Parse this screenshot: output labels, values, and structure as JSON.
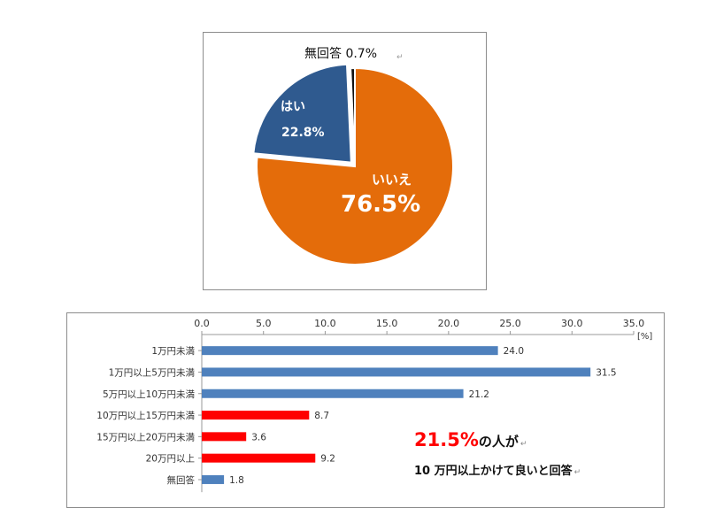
{
  "chart_data": [
    {
      "type": "pie",
      "slices": [
        {
          "label": "いいえ",
          "value": 76.5,
          "value_label": "76.5%",
          "color": "#e46c0a"
        },
        {
          "label": "はい",
          "value": 22.8,
          "value_label": "22.8%",
          "color": "#2f5a8f"
        },
        {
          "label": "無回答",
          "value": 0.7,
          "value_label": "0.7%",
          "color": "#111111"
        }
      ]
    },
    {
      "type": "bar",
      "orientation": "horizontal",
      "categories": [
        "1万円未満",
        "1万円以上5万円未満",
        "5万円以上10万円未満",
        "10万円以上15万円未満",
        "15万円以上20万円未満",
        "20万円以上",
        "無回答"
      ],
      "values": [
        24.0,
        31.5,
        21.2,
        8.7,
        3.6,
        9.2,
        1.8
      ],
      "colors": [
        "#4f81bd",
        "#4f81bd",
        "#4f81bd",
        "#ff0000",
        "#ff0000",
        "#ff0000",
        "#4f81bd"
      ],
      "xlim": [
        0,
        35
      ],
      "xticks": [
        "0.0",
        "5.0",
        "10.0",
        "15.0",
        "20.0",
        "25.0",
        "30.0",
        "35.0"
      ],
      "unit_label": "[%]",
      "tick_position": "top"
    }
  ],
  "callout": {
    "highlight": "21.5%",
    "line1_suffix": "の人が",
    "line2": "10 万円以上かけて良いと回答",
    "highlight_color": "#ff0000"
  }
}
